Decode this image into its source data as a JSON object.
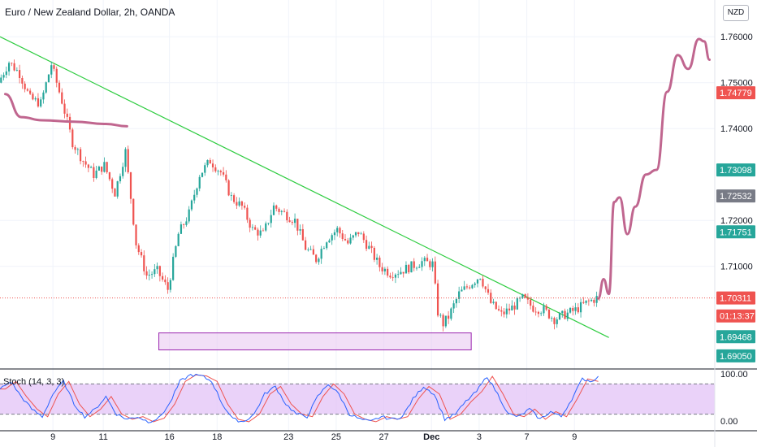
{
  "header": {
    "title": "Euro / New Zealand Dollar, 2h, OANDA",
    "currency_button": "NZD"
  },
  "indicator": {
    "label": "Stoch (14, 3, 3)",
    "ticks": [
      "100.00",
      "0.00"
    ]
  },
  "colors": {
    "up": "#26a69a",
    "down": "#ef5350",
    "trendline": "#2ecc40",
    "drawing": "#c0668f",
    "zone_fill": "#e8c4f0",
    "zone_stroke": "#9b27b0",
    "stoch_k": "#2962ff",
    "stoch_d": "#ef5350",
    "stoch_band": "#e1bff7"
  },
  "price_labels": [
    {
      "text": "1.74779",
      "value": 1.74779,
      "bg": "#ef5350"
    },
    {
      "text": "1.73098",
      "value": 1.73098,
      "bg": "#26a69a"
    },
    {
      "text": "1.72532",
      "value": 1.72532,
      "bg": "#787b86"
    },
    {
      "text": "1.71751",
      "value": 1.71751,
      "bg": "#26a69a"
    },
    {
      "text": "1.70311",
      "value": 1.70311,
      "bg": "#ef5350"
    },
    {
      "text": "01:13:37",
      "value": 1.6992,
      "bg": "#ef5350"
    },
    {
      "text": "1.69468",
      "value": 1.69468,
      "bg": "#26a69a"
    },
    {
      "text": "1.69050",
      "value": 1.6905,
      "bg": "#26a69a"
    }
  ],
  "chart_data": {
    "type": "candlestick",
    "title": "Euro / New Zealand Dollar, 2h, OANDA",
    "yaxis": {
      "ticks": [
        "1.76000",
        "1.75000",
        "1.74000",
        "1.72000",
        "1.71000"
      ],
      "tick_values": [
        1.76,
        1.75,
        1.74,
        1.72,
        1.71
      ]
    },
    "xaxis": {
      "labels": [
        "9",
        "11",
        "16",
        "18",
        "23",
        "25",
        "27",
        "Dec",
        "3",
        "7",
        "9"
      ]
    },
    "price_range": [
      1.688,
      1.768
    ],
    "current_price": 1.70311,
    "price_path": [
      [
        0,
        1.75
      ],
      [
        4,
        1.7545
      ],
      [
        8,
        1.752
      ],
      [
        12,
        1.7465
      ],
      [
        16,
        1.7455
      ],
      [
        20,
        1.754
      ],
      [
        24,
        1.746
      ],
      [
        28,
        1.737
      ],
      [
        32,
        1.733
      ],
      [
        36,
        1.73
      ],
      [
        40,
        1.732
      ],
      [
        44,
        1.726
      ],
      [
        48,
        1.735
      ],
      [
        52,
        1.715
      ],
      [
        56,
        1.708
      ],
      [
        60,
        1.709
      ],
      [
        64,
        1.705
      ],
      [
        68,
        1.717
      ],
      [
        72,
        1.7215
      ],
      [
        76,
        1.73
      ],
      [
        80,
        1.733
      ],
      [
        84,
        1.7305
      ],
      [
        88,
        1.725
      ],
      [
        92,
        1.723
      ],
      [
        96,
        1.718
      ],
      [
        100,
        1.717
      ],
      [
        104,
        1.723
      ],
      [
        108,
        1.7215
      ],
      [
        112,
        1.72
      ],
      [
        116,
        1.714
      ],
      [
        120,
        1.7115
      ],
      [
        124,
        1.716
      ],
      [
        128,
        1.718
      ],
      [
        132,
        1.715
      ],
      [
        136,
        1.7175
      ],
      [
        140,
        1.714
      ],
      [
        144,
        1.71
      ],
      [
        148,
        1.7085
      ],
      [
        152,
        1.709
      ],
      [
        156,
        1.71
      ],
      [
        160,
        1.711
      ],
      [
        164,
        1.7105
      ],
      [
        166,
        1.7
      ],
      [
        168,
        1.6975
      ],
      [
        170,
        1.699
      ],
      [
        174,
        1.704
      ],
      [
        178,
        1.706
      ],
      [
        182,
        1.708
      ],
      [
        186,
        1.702
      ],
      [
        190,
        1.6995
      ],
      [
        194,
        1.701
      ],
      [
        198,
        1.703
      ],
      [
        202,
        1.701
      ],
      [
        206,
        1.7005
      ],
      [
        210,
        1.6985
      ],
      [
        214,
        1.6995
      ],
      [
        218,
        1.7005
      ],
      [
        222,
        1.702
      ],
      [
        226,
        1.7031
      ]
    ],
    "stochastic": {
      "name": "Stoch (14, 3, 3)",
      "upper_band": 80,
      "lower_band": 20,
      "k_path": [
        [
          0,
          70
        ],
        [
          4,
          85
        ],
        [
          8,
          55
        ],
        [
          12,
          30
        ],
        [
          16,
          15
        ],
        [
          20,
          60
        ],
        [
          24,
          85
        ],
        [
          28,
          40
        ],
        [
          32,
          15
        ],
        [
          36,
          30
        ],
        [
          40,
          55
        ],
        [
          44,
          20
        ],
        [
          48,
          10
        ],
        [
          52,
          15
        ],
        [
          56,
          5
        ],
        [
          60,
          12
        ],
        [
          64,
          40
        ],
        [
          68,
          85
        ],
        [
          72,
          98
        ],
        [
          76,
          96
        ],
        [
          80,
          85
        ],
        [
          84,
          40
        ],
        [
          88,
          10
        ],
        [
          92,
          5
        ],
        [
          96,
          20
        ],
        [
          100,
          60
        ],
        [
          104,
          75
        ],
        [
          108,
          40
        ],
        [
          112,
          20
        ],
        [
          116,
          15
        ],
        [
          120,
          55
        ],
        [
          124,
          80
        ],
        [
          128,
          60
        ],
        [
          132,
          20
        ],
        [
          136,
          10
        ],
        [
          140,
          5
        ],
        [
          144,
          15
        ],
        [
          148,
          10
        ],
        [
          152,
          15
        ],
        [
          156,
          50
        ],
        [
          160,
          75
        ],
        [
          164,
          60
        ],
        [
          168,
          10
        ],
        [
          172,
          20
        ],
        [
          176,
          45
        ],
        [
          180,
          65
        ],
        [
          184,
          95
        ],
        [
          188,
          60
        ],
        [
          192,
          20
        ],
        [
          196,
          15
        ],
        [
          200,
          30
        ],
        [
          204,
          10
        ],
        [
          208,
          25
        ],
        [
          212,
          15
        ],
        [
          216,
          50
        ],
        [
          220,
          90
        ],
        [
          224,
          85
        ],
        [
          226,
          98
        ]
      ]
    },
    "annotations": {
      "trendline": [
        [
          0,
          1.76
        ],
        [
          230,
          1.6945
        ]
      ],
      "support_zone": [
        1.6918,
        1.6955
      ],
      "projection_path": [
        [
          226,
          1.703
        ],
        [
          228,
          1.7072
        ],
        [
          230,
          1.704
        ],
        [
          232,
          1.724
        ],
        [
          234,
          1.725
        ],
        [
          237,
          1.717
        ],
        [
          240,
          1.723
        ],
        [
          244,
          1.73
        ],
        [
          248,
          1.731
        ],
        [
          252,
          1.748
        ],
        [
          256,
          1.756
        ],
        [
          260,
          1.753
        ],
        [
          264,
          1.7595
        ],
        [
          266,
          1.759
        ],
        [
          268,
          1.755
        ]
      ],
      "cup_curve": [
        [
          2,
          1.7475
        ],
        [
          8,
          1.7425
        ],
        [
          16,
          1.7418
        ],
        [
          28,
          1.7415
        ],
        [
          40,
          1.741
        ],
        [
          48,
          1.7405
        ]
      ]
    }
  }
}
